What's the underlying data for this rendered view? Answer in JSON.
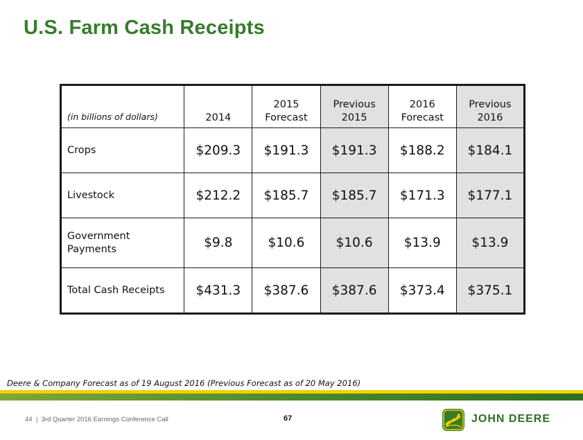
{
  "title": "U.S. Farm Cash Receipts",
  "table": {
    "unit_label": "(in billions of dollars)",
    "columns": [
      {
        "line1": "2014",
        "line2": ""
      },
      {
        "line1": "2015",
        "line2": "Forecast"
      },
      {
        "line1": "Previous",
        "line2": "2015"
      },
      {
        "line1": "2016",
        "line2": "Forecast"
      },
      {
        "line1": "Previous",
        "line2": "2016"
      }
    ],
    "rows": [
      {
        "label_line1": "Crops",
        "label_line2": "",
        "values": [
          "$209.3",
          "$191.3",
          "$191.3",
          "$188.2",
          "$184.1"
        ]
      },
      {
        "label_line1": "Livestock",
        "label_line2": "",
        "values": [
          "$212.2",
          "$185.7",
          "$185.7",
          "$171.3",
          "$177.1"
        ]
      },
      {
        "label_line1": "Government",
        "label_line2": "Payments",
        "values": [
          "$9.8",
          "$10.6",
          "$10.6",
          "$13.9",
          "$13.9"
        ]
      },
      {
        "label_line1": "Total Cash Receipts",
        "label_line2": "",
        "values": [
          "$431.3",
          "$387.6",
          "$387.6",
          "$373.4",
          "$375.1"
        ]
      }
    ]
  },
  "footnote": "Deere & Company Forecast as of 19 August 2016 (Previous Forecast as of 20 May 2016)",
  "footer": {
    "slide_number": "44",
    "separator": "|",
    "event": "3rd Quarter 2016 Earnings Conference Call",
    "page_number": "67"
  },
  "logo": {
    "text": "JOHN DEERE",
    "icon": "leaping-deer-icon",
    "colors": {
      "green": "#367c2b",
      "yellow": "#f3d000"
    }
  }
}
